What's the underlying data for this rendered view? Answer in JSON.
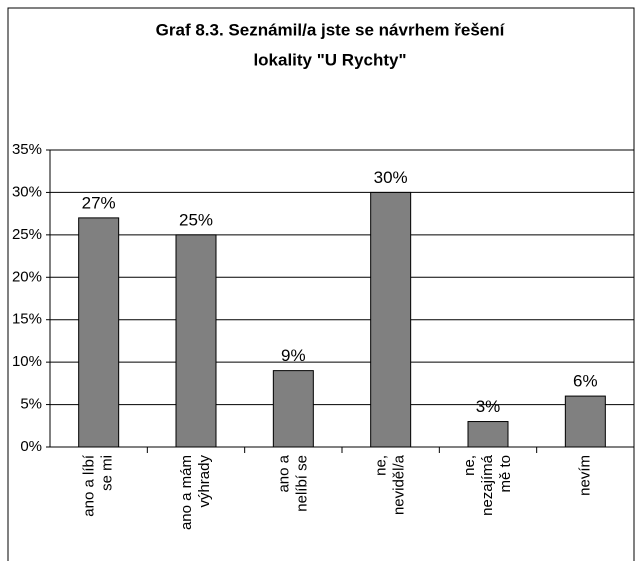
{
  "chart_data": {
    "type": "bar",
    "title_lines": [
      "Graf 8.3. Seznámil/a jste se návrhem řešení",
      "lokality \"U Rychty\""
    ],
    "categories": [
      "ano a líbí\nse mi",
      "ano a mám\nvýhrady",
      "ano a\nnelíbí se",
      "ne,\nneviděl/a",
      "ne,\nnezajímá\nmě to",
      "nevím"
    ],
    "values": [
      27,
      25,
      9,
      30,
      3,
      6
    ],
    "value_labels": [
      "27%",
      "25%",
      "9%",
      "30%",
      "3%",
      "6%"
    ],
    "color": "#808080",
    "ylim": [
      0,
      35
    ],
    "yticks": [
      {
        "value": 0,
        "label": "0%"
      },
      {
        "value": 5,
        "label": "5%"
      },
      {
        "value": 10,
        "label": "10%"
      },
      {
        "value": 15,
        "label": "15%"
      },
      {
        "value": 20,
        "label": "20%"
      },
      {
        "value": 25,
        "label": "25%"
      },
      {
        "value": 30,
        "label": "30%"
      },
      {
        "value": 35,
        "label": "35%"
      }
    ],
    "grid": true
  }
}
